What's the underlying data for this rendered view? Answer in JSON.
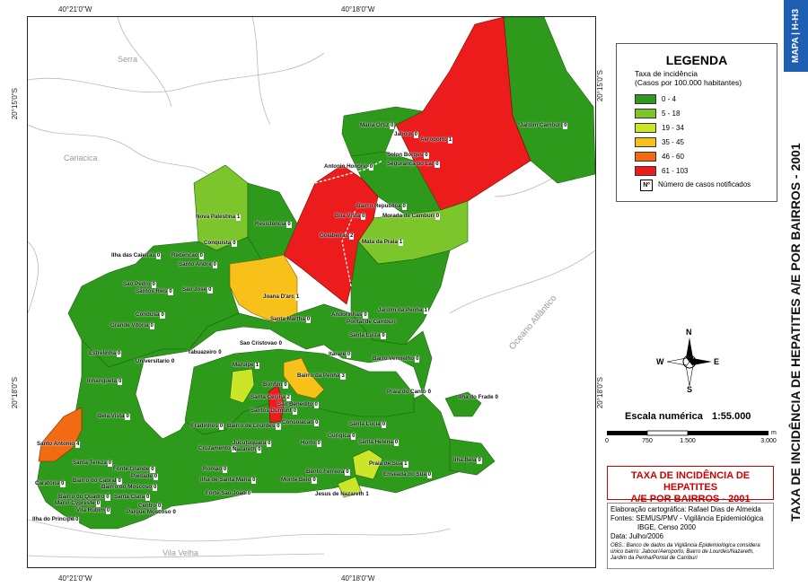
{
  "coordinates": {
    "top_left": "40°21'0\"W",
    "top_right": "40°18'0\"W",
    "bottom_left": "40°21'0\"W",
    "bottom_right": "40°18'0\"W",
    "left_top": "20°15'0\"S",
    "left_bottom": "20°18'0\"S",
    "right_top": "20°15'0\"S",
    "right_bottom": "20°18'0\"S"
  },
  "area_labels": {
    "serra": "Serra",
    "cariacica": "Cariacica",
    "vila_velha": "Vila Velha",
    "ocean": "Oceano Atlântico"
  },
  "colors": {
    "green_dark": "#2e9a1c",
    "green_light": "#7cc62c",
    "yellow_green": "#cbe629",
    "yellow": "#f8c11a",
    "orange": "#f26a12",
    "red": "#ec1c1c",
    "water_line": "#b7b7b7",
    "accent_blue": "#1f5fb3",
    "title_red": "#cc0000"
  },
  "legend": {
    "title": "LEGENDA",
    "subtitle_line1": "Taxa de incidência",
    "subtitle_line2": "(Casos por 100.000 habitantes)",
    "classes": [
      {
        "label": "0 - 4",
        "color": "#2e9a1c"
      },
      {
        "label": "5 - 18",
        "color": "#7cc62c"
      },
      {
        "label": "19 - 34",
        "color": "#cbe629"
      },
      {
        "label": "35 - 45",
        "color": "#f8c11a"
      },
      {
        "label": "46 - 60",
        "color": "#f26a12"
      },
      {
        "label": "61 - 103",
        "color": "#ec1c1c"
      }
    ],
    "note_symbol": "Nº",
    "note_text": "Número de casos notificados"
  },
  "compass": {
    "n": "N",
    "s": "S",
    "e": "E",
    "w": "W"
  },
  "scale": {
    "title": "Escala numérica",
    "value": "1:55.000",
    "ticks": [
      "0",
      "750",
      "1.500",
      "3.000"
    ],
    "unit": "m"
  },
  "title_box": {
    "line1": "TAXA DE INCIDÊNCIA DE HEPATITES",
    "line2": "A/E POR BAIRROS - 2001"
  },
  "credits": {
    "line1": "Elaboração cartográfica: Rafael Dias de Almeida",
    "line2": "Fontes: SEMUS/PMV - Vigilância Epidemiológica",
    "line3": "IBGE, Censo 2000",
    "line4": "Data: Julho/2006",
    "obs": "OBS.: Banco de dados da Vigilância Epidemiológica considera único bairro: Jabour/Aeroporto, Bairro de Lourdes/Nazareth, Jardim da Penha/Pontal de Camburi"
  },
  "side": {
    "tag": "MAPA | H-H3",
    "title": "TAXA DE INCIDÊNCIA DE HEPATITES A/E POR BAIRROS - 2001"
  },
  "neighborhoods": [
    {
      "name": "Maria Ortiz",
      "count": "0"
    },
    {
      "name": "Jabour",
      "count": "0"
    },
    {
      "name": "Aeroporto",
      "count": "1"
    },
    {
      "name": "Jardim Camburi",
      "count": "0"
    },
    {
      "name": "Solon Borges",
      "count": "0"
    },
    {
      "name": "Segurança do Lar",
      "count": "0"
    },
    {
      "name": "Antonio Honório",
      "count": "0"
    },
    {
      "name": "Bairro Republica",
      "count": "0"
    },
    {
      "name": "Boa Vista",
      "count": "0"
    },
    {
      "name": "Morada de Camburi",
      "count": "0"
    },
    {
      "name": "Goiabeiras",
      "count": "2"
    },
    {
      "name": "Mata da Praia",
      "count": "1"
    },
    {
      "name": "Nova Palestina",
      "count": "1"
    },
    {
      "name": "Resistencia",
      "count": "0"
    },
    {
      "name": "Conquista",
      "count": "0"
    },
    {
      "name": "Redencao",
      "count": "0"
    },
    {
      "name": "Ilha das Caieiras",
      "count": "0"
    },
    {
      "name": "Santo Andre",
      "count": "0"
    },
    {
      "name": "Sao Pedro",
      "count": "0"
    },
    {
      "name": "Santos Reis",
      "count": "0"
    },
    {
      "name": "Sao Jose",
      "count": "0"
    },
    {
      "name": "Joana D'arc",
      "count": "1"
    },
    {
      "name": "Jardim da Penha",
      "count": "1"
    },
    {
      "name": "Condusa",
      "count": "0"
    },
    {
      "name": "Grande Vitoria",
      "count": "0"
    },
    {
      "name": "Santa Martha",
      "count": "0"
    },
    {
      "name": "Andorinhas",
      "count": "0"
    },
    {
      "name": "Pontal de Camburi",
      "count": ""
    },
    {
      "name": "Santa Luiza",
      "count": "0"
    },
    {
      "name": "Estrelinha",
      "count": "0"
    },
    {
      "name": "Universitario",
      "count": "0"
    },
    {
      "name": "Sao Cristovao",
      "count": "0"
    },
    {
      "name": "Tabuazeiro",
      "count": "0"
    },
    {
      "name": "Itarare",
      "count": "0"
    },
    {
      "name": "Maruipe",
      "count": "1"
    },
    {
      "name": "Barro Vermelho",
      "count": "0"
    },
    {
      "name": "Bairro da Penha",
      "count": "3"
    },
    {
      "name": "Bonfim",
      "count": "0"
    },
    {
      "name": "Inhanguetá",
      "count": "0"
    },
    {
      "name": "Santa Cecilia",
      "count": "2"
    },
    {
      "name": "Sao Benedito",
      "count": "0"
    },
    {
      "name": "Praia do Canto",
      "count": "0"
    },
    {
      "name": "Ilha do Frade",
      "count": "0"
    },
    {
      "name": "Santos Dumont",
      "count": "0"
    },
    {
      "name": "Bela Vista",
      "count": "0"
    },
    {
      "name": "Fradinhos",
      "count": "0"
    },
    {
      "name": "Bairro de Lourdes",
      "count": "0"
    },
    {
      "name": "Consolacao",
      "count": "0"
    },
    {
      "name": "Santa Lucia",
      "count": "0"
    },
    {
      "name": "Gurigica",
      "count": "0"
    },
    {
      "name": "Santo Antonio",
      "count": "4"
    },
    {
      "name": "Cruzamento",
      "count": "0"
    },
    {
      "name": "Jucutuquara",
      "count": "0"
    },
    {
      "name": "Nazareth",
      "count": "0"
    },
    {
      "name": "Horto",
      "count": "0"
    },
    {
      "name": "Santa Helena",
      "count": "0"
    },
    {
      "name": "Santa Tereza",
      "count": "0"
    },
    {
      "name": "Praia de Sua",
      "count": "1"
    },
    {
      "name": "Ilha Bela",
      "count": "0"
    },
    {
      "name": "Fonte Grande",
      "count": "0"
    },
    {
      "name": "Romao",
      "count": "0"
    },
    {
      "name": "Bento Ferreira",
      "count": "0"
    },
    {
      "name": "Enseada do Sua",
      "count": "0"
    },
    {
      "name": "Caratoira",
      "count": "0"
    },
    {
      "name": "Bairro do Cabral",
      "count": "0"
    },
    {
      "name": "Piedade",
      "count": "0"
    },
    {
      "name": "Ilha de Santa Maria",
      "count": "0"
    },
    {
      "name": "Monte Belo",
      "count": "0"
    },
    {
      "name": "Bairro do Quadro",
      "count": "0"
    },
    {
      "name": "Bairro do Moscoso",
      "count": "0"
    },
    {
      "name": "Jesus de Nazareth",
      "count": "1"
    },
    {
      "name": "Mario Cypreste",
      "count": "0"
    },
    {
      "name": "Santa Clara",
      "count": "0"
    },
    {
      "name": "Forte Sao Joao",
      "count": "0"
    },
    {
      "name": "Vila Rubim",
      "count": "0"
    },
    {
      "name": "Centro",
      "count": "0"
    },
    {
      "name": "Parque Moscoso",
      "count": "0"
    },
    {
      "name": "Ilha do Principe",
      "count": "0"
    }
  ]
}
